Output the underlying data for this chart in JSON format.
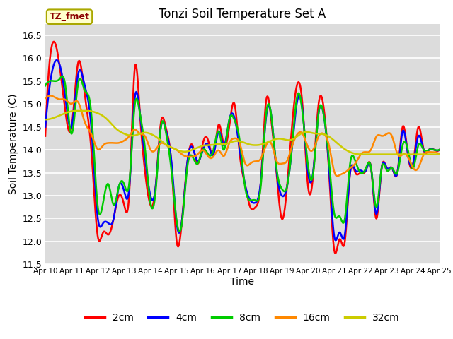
{
  "title": "Tonzi Soil Temperature Set A",
  "xlabel": "Time",
  "ylabel": "Soil Temperature (C)",
  "ylim": [
    11.5,
    16.75
  ],
  "xlim": [
    0,
    15
  ],
  "plot_bg_color": "#dcdcdc",
  "grid_color": "white",
  "legend_label_box": "TZ_fmet",
  "xtick_labels": [
    "Apr 10",
    "Apr 11",
    "Apr 12",
    "Apr 13",
    "Apr 14",
    "Apr 15",
    "Apr 16",
    "Apr 17",
    "Apr 18",
    "Apr 19",
    "Apr 20",
    "Apr 21",
    "Apr 22",
    "Apr 23",
    "Apr 24",
    "Apr 25"
  ],
  "ytick_values": [
    11.5,
    12.0,
    12.5,
    13.0,
    13.5,
    14.0,
    14.5,
    15.0,
    15.5,
    16.0,
    16.5
  ],
  "legend_entries": [
    "2cm",
    "4cm",
    "8cm",
    "16cm",
    "32cm"
  ],
  "legend_colors": [
    "#ff0000",
    "#0000ff",
    "#00cc00",
    "#ff8800",
    "#cccc00"
  ],
  "line_widths": [
    1.8,
    1.8,
    1.8,
    1.8,
    1.8
  ],
  "t_key": [
    0,
    0.35,
    0.55,
    0.75,
    1.0,
    1.25,
    1.5,
    1.75,
    2.0,
    2.2,
    2.4,
    2.6,
    2.8,
    3.0,
    3.2,
    3.4,
    3.6,
    3.8,
    4.0,
    4.2,
    4.4,
    4.6,
    4.8,
    5.0,
    5.2,
    5.4,
    5.6,
    5.8,
    6.0,
    6.2,
    6.4,
    6.6,
    6.8,
    7.0,
    7.2,
    7.4,
    7.6,
    7.8,
    8.0,
    8.2,
    8.4,
    8.6,
    8.8,
    9.0,
    9.2,
    9.4,
    9.6,
    9.8,
    10.0,
    10.2,
    10.4,
    10.6,
    10.8,
    11.0,
    11.2,
    11.4,
    11.6,
    11.8,
    12.0,
    12.2,
    12.4,
    12.6,
    12.8,
    13.0,
    13.2,
    13.4,
    13.6,
    13.8,
    14.0,
    14.2,
    14.4,
    14.6,
    14.8,
    15.0
  ],
  "y_2cm": [
    14.3,
    16.35,
    15.8,
    14.9,
    14.5,
    15.9,
    15.2,
    14.0,
    12.1,
    12.2,
    12.15,
    12.5,
    13.0,
    12.8,
    13.1,
    15.75,
    14.8,
    13.5,
    12.8,
    13.2,
    14.6,
    14.45,
    13.7,
    12.0,
    12.45,
    13.7,
    14.1,
    13.7,
    14.15,
    14.2,
    13.9,
    14.55,
    14.1,
    14.5,
    15.0,
    13.9,
    13.25,
    12.75,
    12.75,
    13.3,
    15.05,
    14.65,
    13.5,
    12.5,
    13.2,
    14.6,
    15.45,
    14.9,
    13.2,
    13.5,
    15.0,
    14.9,
    13.5,
    11.8,
    12.05,
    12.0,
    13.5,
    13.5,
    13.5,
    13.55,
    13.6,
    12.5,
    13.6,
    13.6,
    13.6,
    13.5,
    14.5,
    13.9,
    13.7,
    14.5,
    14.0,
    14.0,
    14.0,
    14.0
  ],
  "y_4cm": [
    14.5,
    15.9,
    15.85,
    15.2,
    14.5,
    15.65,
    15.4,
    14.5,
    12.5,
    12.4,
    12.4,
    12.5,
    13.2,
    13.1,
    13.2,
    15.1,
    14.8,
    13.8,
    13.0,
    13.2,
    14.5,
    14.4,
    13.75,
    12.4,
    12.45,
    13.7,
    14.05,
    13.75,
    14.0,
    14.1,
    13.9,
    14.4,
    14.1,
    14.65,
    14.7,
    14.0,
    13.25,
    12.9,
    12.85,
    13.3,
    14.7,
    14.75,
    13.55,
    13.0,
    13.2,
    14.1,
    15.1,
    14.8,
    13.5,
    13.55,
    14.8,
    14.75,
    13.6,
    12.1,
    12.2,
    12.15,
    13.5,
    13.55,
    13.55,
    13.55,
    13.6,
    12.6,
    13.6,
    13.6,
    13.6,
    13.5,
    14.4,
    13.9,
    13.7,
    14.3,
    14.0,
    14.0,
    14.0,
    14.0
  ],
  "y_8cm": [
    15.4,
    15.5,
    15.55,
    15.45,
    14.35,
    15.45,
    15.3,
    14.8,
    12.75,
    12.85,
    13.25,
    12.8,
    13.2,
    13.25,
    13.3,
    14.95,
    14.8,
    14.0,
    12.85,
    13.1,
    14.5,
    14.35,
    13.55,
    12.45,
    12.4,
    13.6,
    13.85,
    13.7,
    14.0,
    13.9,
    14.0,
    14.4,
    14.0,
    14.65,
    14.65,
    14.2,
    13.2,
    12.9,
    12.9,
    13.2,
    14.75,
    14.75,
    13.6,
    13.15,
    13.2,
    14.15,
    15.2,
    14.75,
    13.65,
    13.5,
    14.8,
    14.75,
    13.75,
    12.6,
    12.55,
    12.5,
    13.7,
    13.75,
    13.5,
    13.6,
    13.6,
    12.75,
    13.6,
    13.55,
    13.6,
    13.5,
    14.1,
    14.0,
    13.6,
    14.1,
    14.0,
    14.0,
    14.0,
    14.0
  ],
  "y_16cm": [
    15.1,
    15.15,
    15.1,
    15.1,
    15.0,
    15.05,
    14.6,
    14.35,
    14.0,
    14.1,
    14.15,
    14.15,
    14.15,
    14.2,
    14.3,
    14.45,
    14.35,
    14.3,
    14.0,
    14.0,
    14.15,
    14.1,
    14.05,
    14.0,
    13.9,
    13.85,
    13.85,
    13.9,
    14.0,
    13.85,
    13.85,
    14.0,
    13.85,
    14.15,
    14.25,
    14.15,
    13.7,
    13.7,
    13.75,
    13.8,
    14.1,
    14.15,
    13.75,
    13.7,
    13.75,
    14.1,
    14.35,
    14.35,
    14.05,
    14.0,
    14.3,
    14.35,
    14.1,
    13.5,
    13.45,
    13.5,
    13.6,
    13.7,
    13.9,
    13.95,
    14.0,
    14.3,
    14.3,
    14.35,
    14.3,
    13.9,
    13.9,
    13.85,
    13.6,
    13.6,
    13.9,
    13.95,
    13.95,
    13.9
  ],
  "y_32cm": [
    14.65,
    14.7,
    14.75,
    14.8,
    14.85,
    14.85,
    14.85,
    14.85,
    14.8,
    14.75,
    14.65,
    14.5,
    14.4,
    14.35,
    14.3,
    14.3,
    14.35,
    14.4,
    14.35,
    14.3,
    14.2,
    14.1,
    14.05,
    14.0,
    13.95,
    13.95,
    14.0,
    14.05,
    14.1,
    14.1,
    14.1,
    14.15,
    14.1,
    14.15,
    14.2,
    14.2,
    14.15,
    14.1,
    14.1,
    14.1,
    14.15,
    14.2,
    14.25,
    14.25,
    14.2,
    14.2,
    14.3,
    14.4,
    14.4,
    14.35,
    14.35,
    14.35,
    14.3,
    14.2,
    14.1,
    14.0,
    13.95,
    13.9,
    13.9,
    13.9,
    13.9,
    13.9,
    13.9,
    13.9,
    13.9,
    13.9,
    13.9,
    13.9,
    13.9,
    13.9,
    13.9,
    13.9,
    13.9,
    13.9
  ]
}
